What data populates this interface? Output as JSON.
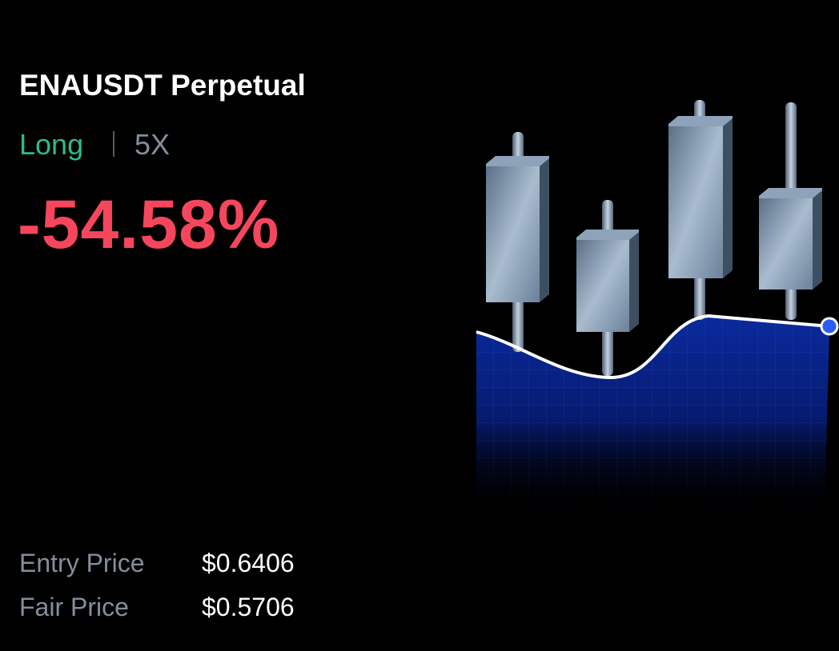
{
  "header": {
    "title": "ENAUSDT Perpetual"
  },
  "position": {
    "side": "Long",
    "leverage": "5X",
    "pnl": "-54.58%"
  },
  "prices": [
    {
      "label": "Entry Price",
      "value": "$0.6406"
    },
    {
      "label": "Fair Price",
      "value": "$0.5706"
    }
  ]
}
